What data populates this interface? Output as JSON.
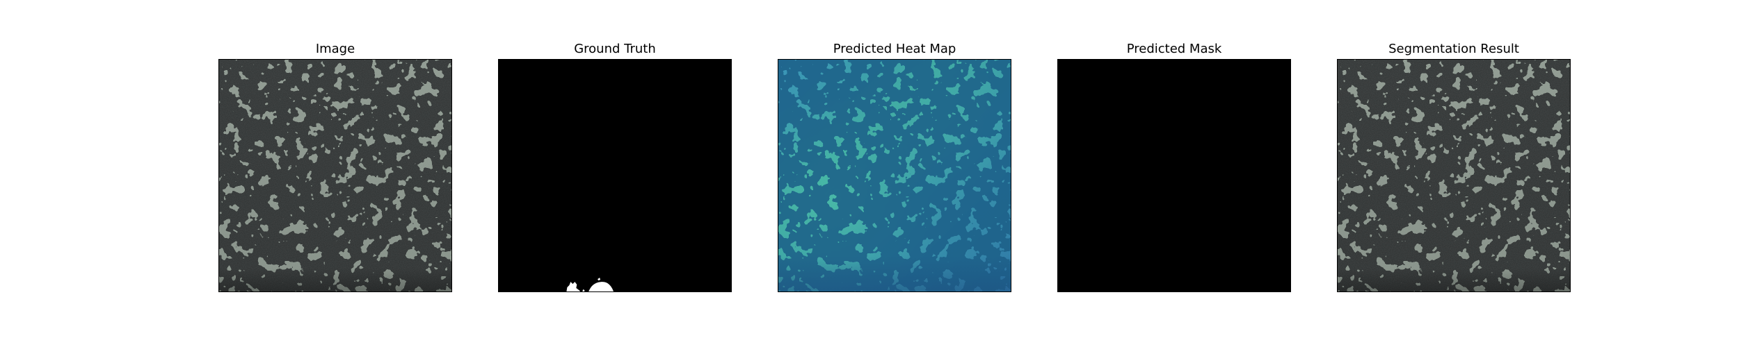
{
  "figure": {
    "panels": [
      {
        "id": "image",
        "title": "Image",
        "content": "textured-photo"
      },
      {
        "id": "ground-truth",
        "title": "Ground Truth",
        "content": "binary-mask"
      },
      {
        "id": "heat-map",
        "title": "Predicted Heat Map",
        "content": "heatmap-overlay"
      },
      {
        "id": "predicted-mask",
        "title": "Predicted Mask",
        "content": "empty-mask"
      },
      {
        "id": "segmentation",
        "title": "Segmentation Result",
        "content": "textured-photo"
      }
    ]
  },
  "colors": {
    "background": "#ffffff",
    "texture_light": "#8e9a90",
    "texture_dark": "#2f3230",
    "mask_background": "#000000",
    "mask_foreground": "#ffffff",
    "heat_light": "#3fa9a3",
    "heat_dark": "#1f5f88"
  }
}
